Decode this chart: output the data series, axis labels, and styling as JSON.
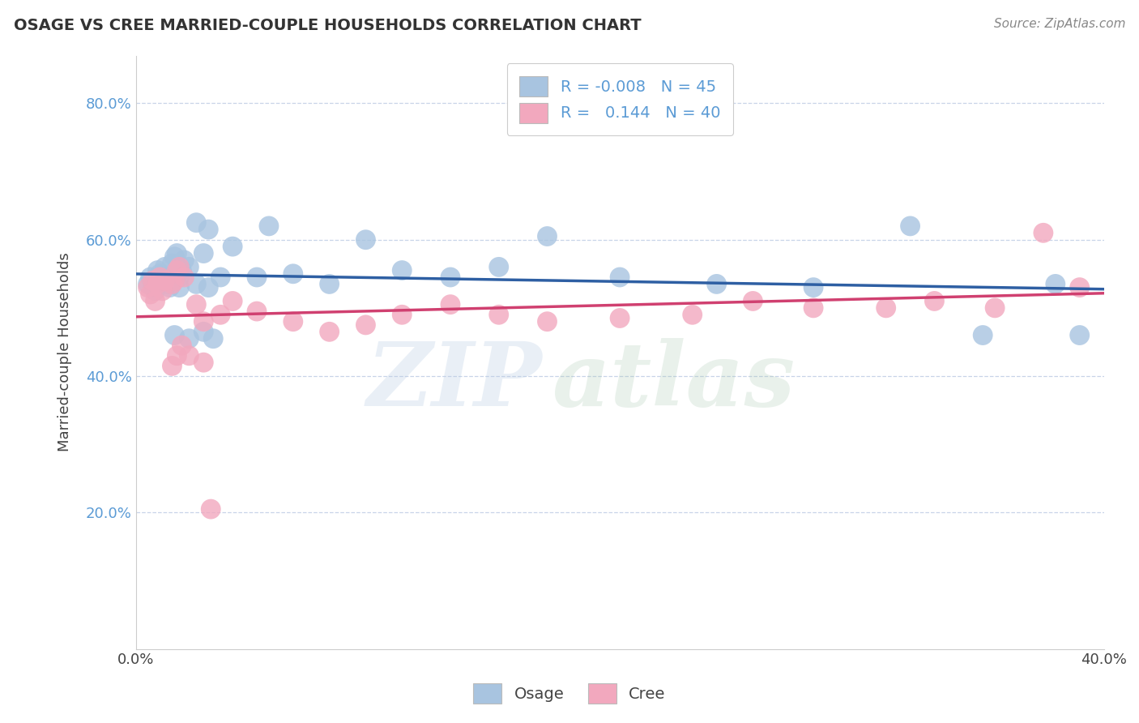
{
  "title": "OSAGE VS CREE MARRIED-COUPLE HOUSEHOLDS CORRELATION CHART",
  "source": "Source: ZipAtlas.com",
  "ylabel": "Married-couple Households",
  "xlim": [
    0.0,
    0.4
  ],
  "ylim": [
    0.0,
    0.87
  ],
  "osage_R": -0.008,
  "osage_N": 45,
  "cree_R": 0.144,
  "cree_N": 40,
  "osage_color": "#a8c4e0",
  "cree_color": "#f2a8be",
  "osage_line_color": "#2e5fa3",
  "cree_line_color": "#d04070",
  "grid_color": "#c8d4e8",
  "background_color": "#ffffff",
  "osage_x": [
    0.005,
    0.006,
    0.007,
    0.008,
    0.009,
    0.01,
    0.011,
    0.012,
    0.013,
    0.015,
    0.016,
    0.017,
    0.018,
    0.019,
    0.02,
    0.022,
    0.025,
    0.028,
    0.03,
    0.035,
    0.04,
    0.05,
    0.055,
    0.065,
    0.08,
    0.095,
    0.11,
    0.13,
    0.15,
    0.17,
    0.2,
    0.24,
    0.28,
    0.32,
    0.35,
    0.38,
    0.39,
    0.025,
    0.03,
    0.018,
    0.022,
    0.014,
    0.016,
    0.028,
    0.032
  ],
  "osage_y": [
    0.535,
    0.545,
    0.53,
    0.525,
    0.555,
    0.55,
    0.54,
    0.56,
    0.535,
    0.565,
    0.575,
    0.58,
    0.545,
    0.555,
    0.57,
    0.56,
    0.625,
    0.58,
    0.615,
    0.545,
    0.59,
    0.545,
    0.62,
    0.55,
    0.535,
    0.6,
    0.555,
    0.545,
    0.56,
    0.605,
    0.545,
    0.535,
    0.53,
    0.62,
    0.46,
    0.535,
    0.46,
    0.535,
    0.53,
    0.53,
    0.455,
    0.53,
    0.46,
    0.465,
    0.455
  ],
  "cree_x": [
    0.005,
    0.006,
    0.007,
    0.008,
    0.009,
    0.01,
    0.011,
    0.012,
    0.015,
    0.016,
    0.017,
    0.018,
    0.02,
    0.025,
    0.028,
    0.035,
    0.04,
    0.05,
    0.065,
    0.08,
    0.095,
    0.11,
    0.13,
    0.15,
    0.17,
    0.2,
    0.23,
    0.255,
    0.28,
    0.31,
    0.33,
    0.355,
    0.375,
    0.39,
    0.015,
    0.017,
    0.019,
    0.022,
    0.028,
    0.031
  ],
  "cree_y": [
    0.53,
    0.52,
    0.54,
    0.51,
    0.535,
    0.545,
    0.525,
    0.54,
    0.535,
    0.54,
    0.555,
    0.56,
    0.545,
    0.505,
    0.48,
    0.49,
    0.51,
    0.495,
    0.48,
    0.465,
    0.475,
    0.49,
    0.505,
    0.49,
    0.48,
    0.485,
    0.49,
    0.51,
    0.5,
    0.5,
    0.51,
    0.5,
    0.61,
    0.53,
    0.415,
    0.43,
    0.445,
    0.43,
    0.42,
    0.205
  ]
}
